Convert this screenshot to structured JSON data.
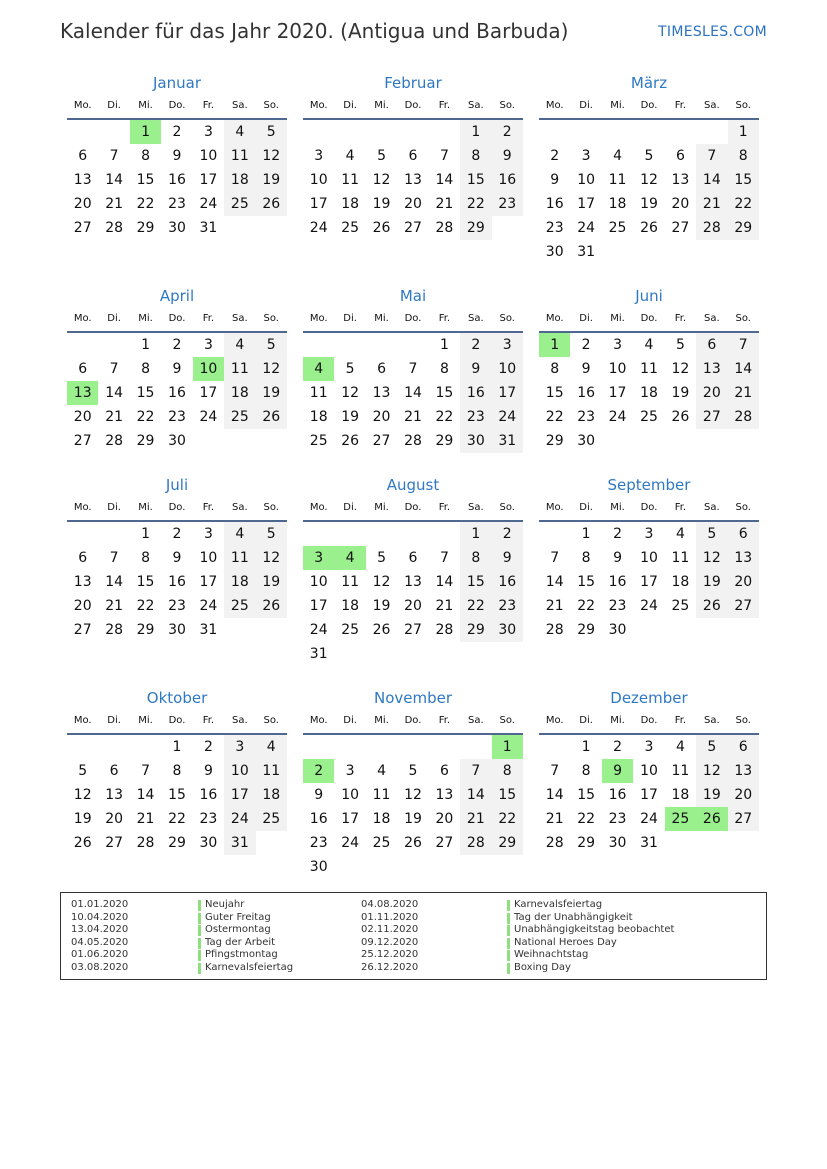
{
  "header": {
    "title": "Kalender für das Jahr 2020. (Antigua und Barbuda)",
    "brand": "TIMESLES.COM"
  },
  "weekdays": [
    "Mo.",
    "Di.",
    "Mi.",
    "Do.",
    "Fr.",
    "Sa.",
    "So."
  ],
  "colors": {
    "accent": "#2f78c2",
    "holiday": "#99f08c",
    "weekend": "#f2f2f2"
  },
  "months": [
    {
      "name": "Januar",
      "first_weekday": 3,
      "days": 31,
      "holidays": [
        1
      ]
    },
    {
      "name": "Februar",
      "first_weekday": 6,
      "days": 29,
      "holidays": []
    },
    {
      "name": "März",
      "first_weekday": 7,
      "days": 31,
      "holidays": []
    },
    {
      "name": "April",
      "first_weekday": 3,
      "days": 30,
      "holidays": [
        10,
        13
      ]
    },
    {
      "name": "Mai",
      "first_weekday": 5,
      "days": 31,
      "holidays": [
        4
      ]
    },
    {
      "name": "Juni",
      "first_weekday": 1,
      "days": 30,
      "holidays": [
        1
      ]
    },
    {
      "name": "Juli",
      "first_weekday": 3,
      "days": 31,
      "holidays": []
    },
    {
      "name": "August",
      "first_weekday": 6,
      "days": 31,
      "holidays": [
        3,
        4
      ]
    },
    {
      "name": "September",
      "first_weekday": 2,
      "days": 30,
      "holidays": []
    },
    {
      "name": "Oktober",
      "first_weekday": 4,
      "days": 31,
      "holidays": []
    },
    {
      "name": "November",
      "first_weekday": 7,
      "days": 30,
      "holidays": [
        1,
        2
      ]
    },
    {
      "name": "Dezember",
      "first_weekday": 2,
      "days": 31,
      "holidays": [
        9,
        25,
        26
      ]
    }
  ],
  "holidays": [
    {
      "date": "01.01.2020",
      "name": "Neujahr"
    },
    {
      "date": "10.04.2020",
      "name": "Guter Freitag"
    },
    {
      "date": "13.04.2020",
      "name": "Ostermontag"
    },
    {
      "date": "04.05.2020",
      "name": "Tag der Arbeit"
    },
    {
      "date": "01.06.2020",
      "name": "Pfingstmontag"
    },
    {
      "date": "03.08.2020",
      "name": "Karnevalsfeiertag"
    },
    {
      "date": "04.08.2020",
      "name": "Karnevalsfeiertag"
    },
    {
      "date": "01.11.2020",
      "name": "Tag der Unabhängigkeit"
    },
    {
      "date": "02.11.2020",
      "name": "Unabhängigkeitstag beobachtet"
    },
    {
      "date": "09.12.2020",
      "name": "National Heroes Day"
    },
    {
      "date": "25.12.2020",
      "name": "Weihnachtstag"
    },
    {
      "date": "26.12.2020",
      "name": "Boxing Day"
    }
  ]
}
